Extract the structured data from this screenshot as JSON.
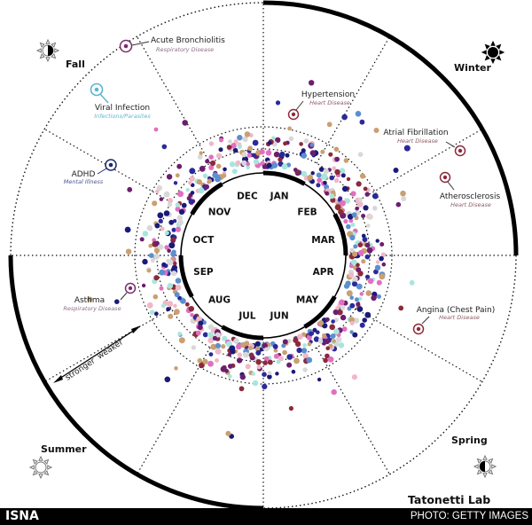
{
  "seasons": {
    "fall": "Fall",
    "winter": "Winter",
    "summer": "Summer",
    "spring": "Spring"
  },
  "months": [
    "JAN",
    "FEB",
    "MAR",
    "APR",
    "MAY",
    "JUN",
    "JUL",
    "AUG",
    "SEP",
    "OCT",
    "NOV",
    "DEC"
  ],
  "diseases": [
    {
      "name": "Acute Bronchiolitis",
      "category": "Respiratory Disease",
      "color": "#7a2d6e",
      "category_color": "#8a6f86"
    },
    {
      "name": "Viral Infection",
      "category": "Infections/Parasites",
      "color": "#5bb5cf",
      "category_color": "#5bb5cf"
    },
    {
      "name": "ADHD",
      "category": "Mental Illness",
      "color": "#1e2a6a",
      "category_color": "#4a5590"
    },
    {
      "name": "Hypertension",
      "category": "Heart Disease",
      "color": "#8b2a3a",
      "category_color": "#8b5a62"
    },
    {
      "name": "Atrial Fibrillation",
      "category": "Heart Disease",
      "color": "#8b2a3a",
      "category_color": "#8b5a62"
    },
    {
      "name": "Atherosclerosis",
      "category": "Heart Disease",
      "color": "#8b2a3a",
      "category_color": "#8b5a62"
    },
    {
      "name": "Asthma",
      "category": "Respiratory Disease",
      "color": "#7a2d6e",
      "category_color": "#8a6f86"
    },
    {
      "name": "Angina (Chest Pain)",
      "category": "Heart Disease",
      "color": "#8b2a3a",
      "category_color": "#8b5a62"
    }
  ],
  "legend": {
    "stronger": "stronger",
    "weaker": "weaker"
  },
  "credit": "Tatonetti Lab",
  "footer": {
    "brand": "ISNA",
    "photo_credit": "PHOTO: GETTY IMAGES"
  },
  "dot_colors": [
    "#1a1a7a",
    "#6b1e6e",
    "#8b2a3a",
    "#f0b8c8",
    "#a8e6dc",
    "#d8d8d8",
    "#5b8fd0",
    "#c9a070",
    "#e070c0",
    "#2a2a9a"
  ]
}
